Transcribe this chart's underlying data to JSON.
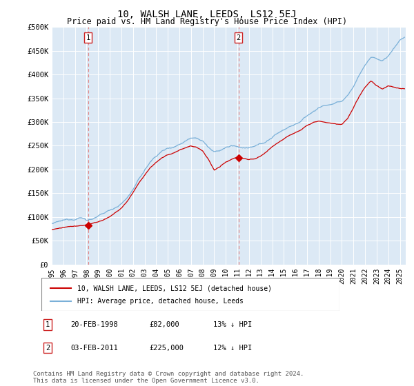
{
  "title": "10, WALSH LANE, LEEDS, LS12 5EJ",
  "subtitle": "Price paid vs. HM Land Registry's House Price Index (HPI)",
  "title_fontsize": 10,
  "subtitle_fontsize": 8.5,
  "ylabel_ticks": [
    "£0",
    "£50K",
    "£100K",
    "£150K",
    "£200K",
    "£250K",
    "£300K",
    "£350K",
    "£400K",
    "£450K",
    "£500K"
  ],
  "ytick_values": [
    0,
    50000,
    100000,
    150000,
    200000,
    250000,
    300000,
    350000,
    400000,
    450000,
    500000
  ],
  "ylim": [
    0,
    500000
  ],
  "xlim_start": 1995.0,
  "xlim_end": 2025.5,
  "plot_bg_color": "#dce9f5",
  "grid_color": "#ffffff",
  "hpi_line_color": "#7ab0d8",
  "price_line_color": "#cc0000",
  "sale1_x": 1998.13,
  "sale1_y": 82000,
  "sale1_label": "1",
  "sale1_date": "20-FEB-1998",
  "sale1_price": "£82,000",
  "sale1_hpi": "13% ↓ HPI",
  "sale2_x": 2011.09,
  "sale2_y": 225000,
  "sale2_label": "2",
  "sale2_date": "03-FEB-2011",
  "sale2_price": "£225,000",
  "sale2_hpi": "12% ↓ HPI",
  "vline_color": "#e08080",
  "legend_house_label": "10, WALSH LANE, LEEDS, LS12 5EJ (detached house)",
  "legend_hpi_label": "HPI: Average price, detached house, Leeds",
  "footnote": "Contains HM Land Registry data © Crown copyright and database right 2024.\nThis data is licensed under the Open Government Licence v3.0.",
  "footnote_fontsize": 6.5
}
